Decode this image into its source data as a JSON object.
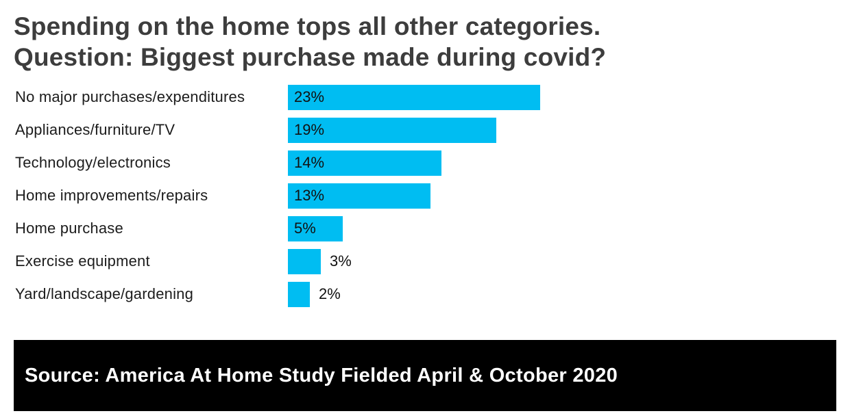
{
  "header": {
    "title_line1": "Spending on the home tops all other categories.",
    "title_line2": "Question: Biggest purchase made during covid?"
  },
  "chart_data": {
    "type": "bar",
    "orientation": "horizontal",
    "categories": [
      "No major purchases/expenditures",
      "Appliances/furniture/TV",
      "Technology/electronics",
      "Home improvements/repairs",
      "Home purchase",
      "Exercise equipment",
      "Yard/landscape/gardening"
    ],
    "values": [
      23,
      19,
      14,
      13,
      5,
      3,
      2
    ],
    "value_labels": [
      "23%",
      "19%",
      "14%",
      "13%",
      "5%",
      "3%",
      "2%"
    ],
    "title": "Spending on the home tops all other categories. Question: Biggest purchase made during covid?",
    "xlabel": "",
    "ylabel": "",
    "xlim": [
      0,
      25
    ],
    "grid": false,
    "legend": false,
    "bar_color": "#00bdf2",
    "label_color": "#111111"
  },
  "footer": {
    "source_text": "Source: America At Home Study Fielded April & October 2020",
    "background_color": "#000000",
    "text_color": "#ffffff"
  }
}
